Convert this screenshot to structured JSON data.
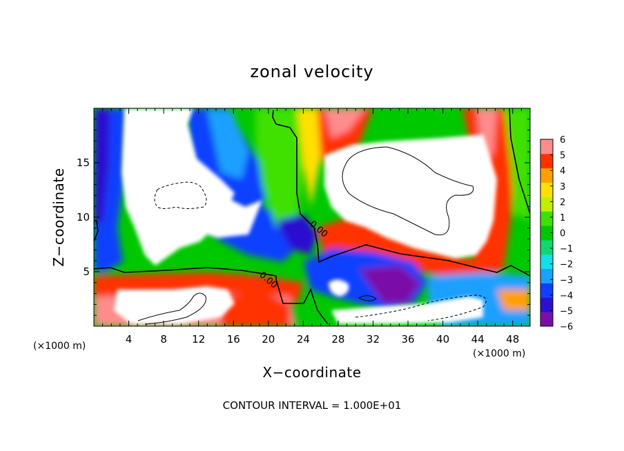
{
  "chart_data": {
    "type": "heatmap",
    "title": "zonal velocity",
    "xlabel": "X−coordinate",
    "ylabel": "Z−coordinate",
    "x_unit": "(×1000 m)",
    "z_unit": "(×1000 m)",
    "xlim": [
      0,
      50
    ],
    "ylim": [
      0,
      20
    ],
    "x_ticks": [
      "4",
      "8",
      "12",
      "16",
      "20",
      "24",
      "28",
      "32",
      "36",
      "40",
      "44",
      "48"
    ],
    "y_ticks": [
      "5",
      "10",
      "15"
    ],
    "colorbar": {
      "ticks": [
        "6",
        "5",
        "4",
        "3",
        "2",
        "1",
        "0",
        "−1",
        "−2",
        "−3",
        "−4",
        "−5",
        "−6"
      ],
      "range": [
        -6,
        6
      ],
      "colors": [
        "#7a0fa8",
        "#2a10d0",
        "#1040ff",
        "#1aa0ff",
        "#10e0e8",
        "#10d870",
        "#00c800",
        "#40e000",
        "#c0f000",
        "#ffe000",
        "#ffa000",
        "#ff3000",
        "#ff8c8c"
      ]
    },
    "contour_labels": [
      "0.00",
      "0.00"
    ],
    "footer": "CONTOUR INTERVAL = 1.000E+01",
    "grid": false,
    "legend": "colorbar-right"
  }
}
